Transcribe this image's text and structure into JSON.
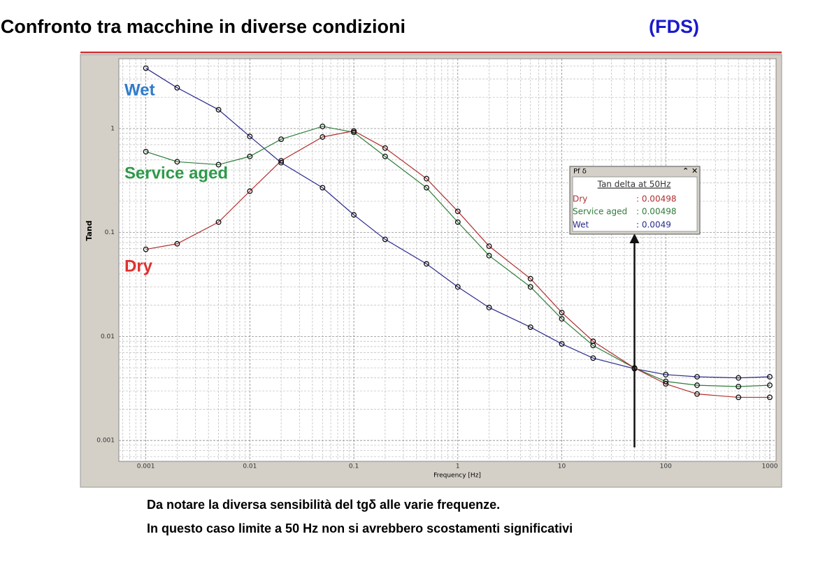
{
  "chart_data": {
    "type": "line",
    "title": "Confronto tra macchine in diverse condizioni",
    "title_suffix": "(FDS)",
    "xlabel": "Frequency [Hz]",
    "ylabel": "Tand",
    "log_x": true,
    "log_y": true,
    "grid": true,
    "minor_grid": true,
    "x": [
      0.001,
      0.002,
      0.005,
      0.01,
      0.02,
      0.05,
      0.1,
      0.2,
      0.5,
      1,
      2,
      5,
      10,
      20,
      50,
      100,
      200,
      500,
      1000
    ],
    "series": [
      {
        "name": "Wet",
        "color": "#2b2b8c",
        "label_color": "#2f7ccc",
        "values": [
          3.81,
          2.47,
          1.52,
          0.84,
          0.47,
          0.27,
          0.148,
          0.086,
          0.05,
          0.03,
          0.019,
          0.0123,
          0.0085,
          0.0062,
          0.0049,
          0.0043,
          0.0041,
          0.004,
          0.0041
        ]
      },
      {
        "name": "Service aged",
        "color": "#2e7d3a",
        "label_color": "#2e9a4a",
        "values": [
          0.6,
          0.48,
          0.45,
          0.54,
          0.79,
          1.05,
          0.92,
          0.54,
          0.27,
          0.126,
          0.06,
          0.03,
          0.0148,
          0.0082,
          0.00498,
          0.0037,
          0.0034,
          0.0033,
          0.0034
        ]
      },
      {
        "name": "Dry",
        "color": "#b03030",
        "label_color": "#e03030",
        "values": [
          0.069,
          0.078,
          0.126,
          0.25,
          0.49,
          0.83,
          0.95,
          0.65,
          0.33,
          0.16,
          0.074,
          0.036,
          0.017,
          0.009,
          0.00498,
          0.0035,
          0.0028,
          0.0026,
          0.0026
        ]
      }
    ],
    "xlim": [
      0.00055,
      1150
    ],
    "ylim": [
      0.00063,
      4.7
    ],
    "xticks": [
      0.001,
      0.01,
      0.1,
      1,
      10,
      100,
      1000
    ],
    "yticks": [
      0.001,
      0.01,
      0.1,
      1
    ],
    "cursor": {
      "x": 50
    },
    "info_box": {
      "header": "Pf δ",
      "title": "Tan delta at 50Hz",
      "values": [
        0.00498,
        0.00498,
        0.0049
      ],
      "value_labels": [
        ": 0.00498",
        ": 0.00498",
        ": 0.0049"
      ]
    },
    "notes": [
      "Da notare la diversa sensibilità del tgδ alle varie frequenze.",
      "In questo caso limite a 50 Hz non si avrebbero scostamenti significativi"
    ]
  }
}
